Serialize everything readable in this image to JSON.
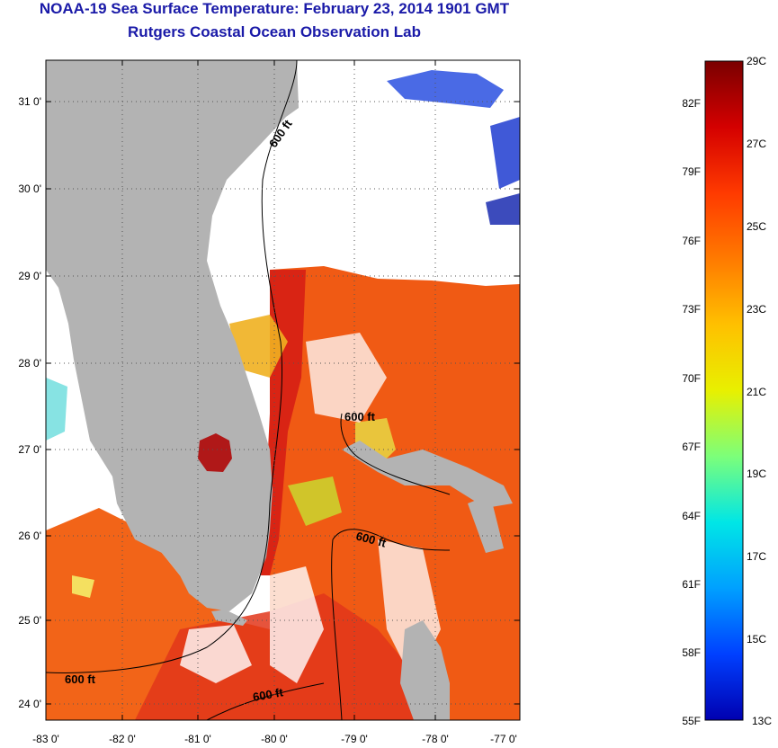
{
  "header": {
    "title": "NOAA-19 Sea Surface Temperature:  February 23, 2014 1901 GMT",
    "subtitle": "Rutgers Coastal Ocean Observation Lab"
  },
  "map": {
    "lon_ticks": [
      "-83 0'",
      "-82 0'",
      "-81 0'",
      "-80 0'",
      "-79 0'",
      "-78 0'",
      "-77 0'"
    ],
    "lat_ticks": [
      "31 0'",
      "30 0'",
      "29 0'",
      "28 0'",
      "27 0'",
      "26 0'",
      "25 0'",
      "24 0'"
    ],
    "contour_labels": [
      "600 ft",
      "600 ft",
      "600 ft",
      "600 ft",
      "600 ft"
    ],
    "colors": {
      "land": "#b3b3b3",
      "cloud": "#ffffff",
      "warm_water": "#f04a12",
      "hot_water": "#c81e10"
    }
  },
  "colorbar": {
    "celsius_labels": [
      "29C",
      "27C",
      "25C",
      "23C",
      "21C",
      "19C",
      "17C",
      "15C",
      "13C"
    ],
    "fahrenheit_labels": [
      "82F",
      "79F",
      "76F",
      "73F",
      "70F",
      "67F",
      "64F",
      "61F",
      "58F",
      "55F"
    ],
    "gradient_colors": [
      "#7a0000",
      "#d40000",
      "#ff3a00",
      "#ff7a00",
      "#ffc000",
      "#e8f000",
      "#7cff7a",
      "#00e6e6",
      "#00a0ff",
      "#0040ff",
      "#0000b0"
    ]
  }
}
